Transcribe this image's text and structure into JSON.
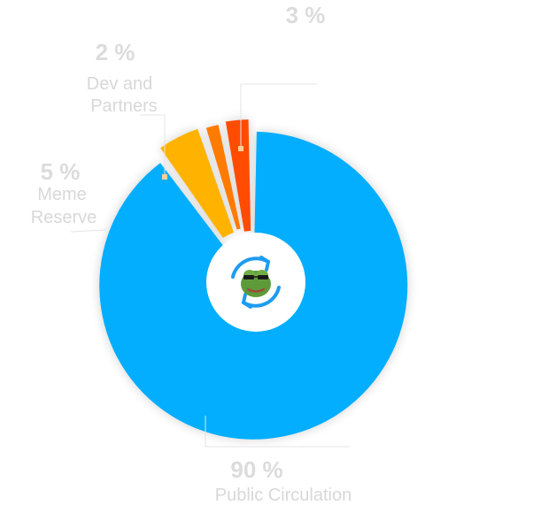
{
  "chart_data": {
    "type": "pie",
    "donut": true,
    "start_angle_deg": 0,
    "direction": "clockwise",
    "slices": [
      {
        "label_lines": [
          "Public Circulation"
        ],
        "percent_text": "90 %",
        "value": 90,
        "color": "#03aeff"
      },
      {
        "label_lines": [
          "Meme",
          "Reserve"
        ],
        "percent_text": "5 %",
        "value": 5,
        "color": "#ffb300"
      },
      {
        "label_lines": [
          "Dev and",
          "Partners"
        ],
        "percent_text": "2 %",
        "value": 2,
        "color": "#ff7b00"
      },
      {
        "label_lines": [],
        "percent_text": "3 %",
        "value": 3,
        "color": "#ff4c00"
      }
    ],
    "center_icon": "frog-refresh-icon",
    "legend": "none"
  }
}
